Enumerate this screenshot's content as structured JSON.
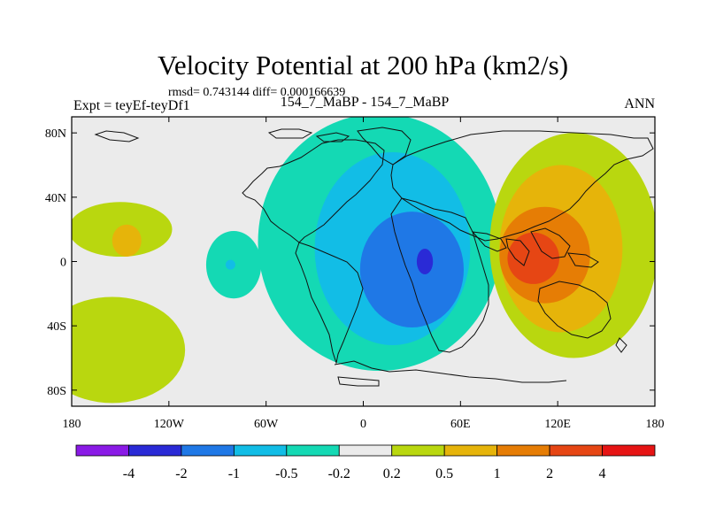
{
  "chart_data": {
    "type": "contour_map",
    "title": "Velocity Potential at 200 hPa (km2/s)",
    "stats_text": "rmsd= 0.743144 diff= 0.000166639",
    "left_label": "Expt = teyEf-teyDf1",
    "center_label": "154_7_MaBP - 154_7_MaBP",
    "right_label": "ANN",
    "x_ticks": [
      {
        "value": -180,
        "label": "180"
      },
      {
        "value": -120,
        "label": "120W"
      },
      {
        "value": -60,
        "label": "60W"
      },
      {
        "value": 0,
        "label": "0"
      },
      {
        "value": 60,
        "label": "60E"
      },
      {
        "value": 120,
        "label": "120E"
      },
      {
        "value": 180,
        "label": "180"
      }
    ],
    "y_ticks": [
      {
        "value": 80,
        "label": "80N"
      },
      {
        "value": 40,
        "label": "40N"
      },
      {
        "value": 0,
        "label": "0"
      },
      {
        "value": -40,
        "label": "40S"
      },
      {
        "value": -80,
        "label": "80S"
      }
    ],
    "xlim": [
      -180,
      180
    ],
    "ylim": [
      -90,
      90
    ],
    "colorbar": {
      "colors": [
        "#8a1ae6",
        "#2a2ad6",
        "#1f78e6",
        "#12bde6",
        "#14d9b4",
        "#ebebeb",
        "#b9d70f",
        "#e6b40a",
        "#e67d05",
        "#e64614",
        "#e61414"
      ],
      "labels": [
        "-4",
        "-2",
        "-1",
        "-0.5",
        "-0.2",
        "0.2",
        "0.5",
        "1",
        "2",
        "4"
      ]
    },
    "background_color": "#ebebeb",
    "fields": [
      {
        "name": "negative-center",
        "level_colors": [
          "#14d9b4",
          "#12bde6",
          "#1f78e6",
          "#2a2ad6"
        ],
        "rings": [
          {
            "lon": 10,
            "lat": 12,
            "rx": 75,
            "ry": 80
          },
          {
            "lon": 18,
            "lat": 8,
            "rx": 48,
            "ry": 60
          },
          {
            "lon": 30,
            "lat": -5,
            "rx": 32,
            "ry": 36
          },
          {
            "lon": 38,
            "lat": 0,
            "rx": 5,
            "ry": 8
          }
        ]
      },
      {
        "name": "positive-center",
        "level_colors": [
          "#b9d70f",
          "#e6b40a",
          "#e67d05",
          "#e64614"
        ],
        "rings": [
          {
            "lon": 130,
            "lat": 10,
            "rx": 52,
            "ry": 70
          },
          {
            "lon": 122,
            "lat": 8,
            "rx": 38,
            "ry": 52
          },
          {
            "lon": 112,
            "lat": 4,
            "rx": 28,
            "ry": 30
          },
          {
            "lon": 105,
            "lat": 2,
            "rx": 16,
            "ry": 16
          }
        ]
      },
      {
        "name": "pacific-positive",
        "level_colors": [
          "#b9d70f",
          "#e6b40a"
        ],
        "rings": [
          {
            "lon": -150,
            "lat": 20,
            "rx": 32,
            "ry": 17
          },
          {
            "lon": -146,
            "lat": 13,
            "rx": 9,
            "ry": 10
          }
        ]
      },
      {
        "name": "south-pacific-positive",
        "level_colors": [
          "#b9d70f"
        ],
        "rings": [
          {
            "lon": -155,
            "lat": -55,
            "rx": 45,
            "ry": 33
          }
        ]
      },
      {
        "name": "east-pacific-negative",
        "level_colors": [
          "#14d9b4",
          "#12bde6"
        ],
        "rings": [
          {
            "lon": -80,
            "lat": -2,
            "rx": 17,
            "ry": 21
          },
          {
            "lon": -82,
            "lat": -2,
            "rx": 3,
            "ry": 3
          }
        ]
      }
    ]
  }
}
